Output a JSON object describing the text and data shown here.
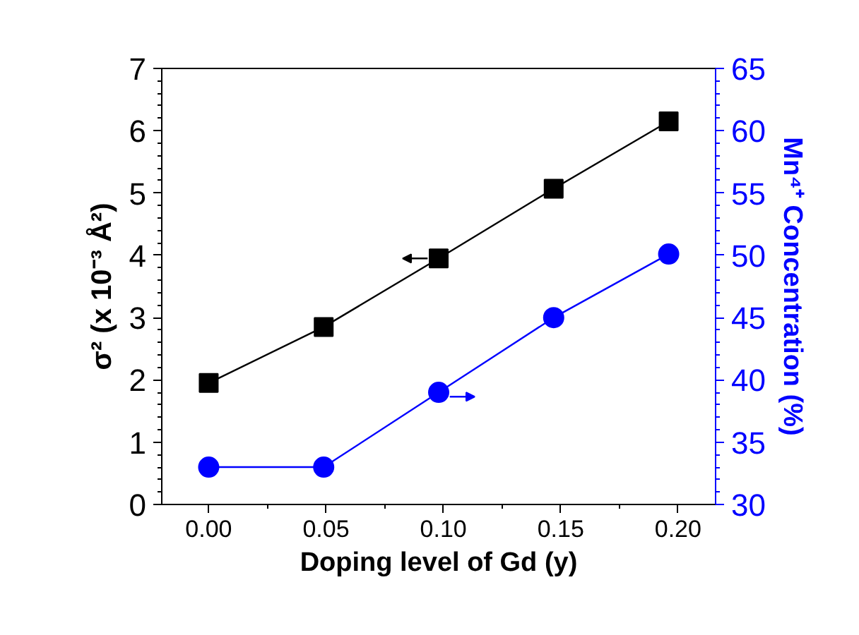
{
  "chart_data": {
    "type": "line",
    "xlabel": "Doping level of Gd (y)",
    "ylabel": "σ² (x 10⁻³ Å²)",
    "y2label": "Mn⁴⁺ Concentration (%)",
    "x": [
      0,
      0.049,
      0.098,
      0.147,
      0.196
    ],
    "series": [
      {
        "color": "#000000",
        "marker": "square",
        "values": [
          1.95,
          2.85,
          3.95,
          5.07,
          6.15
        ]
      },
      {
        "color": "#0000ff",
        "marker": "circle",
        "axis": "y2",
        "values": [
          33.0,
          33.0,
          39.0,
          45.0,
          50.1
        ]
      }
    ],
    "xlim": [
      -0.02,
      0.216
    ],
    "xticks": [
      {
        "value": 0,
        "label": "0.00"
      },
      {
        "value": 0.05,
        "label": "0.05"
      },
      {
        "value": 0.1,
        "label": "0.10"
      },
      {
        "value": 0.15,
        "label": "0.15"
      },
      {
        "value": 0.2,
        "label": "0.20"
      }
    ],
    "ylim": [
      0,
      7
    ],
    "yticks": [
      0,
      1,
      2,
      3,
      4,
      5,
      6,
      7
    ],
    "y2lim": [
      30,
      65
    ],
    "y2ticks": [
      30,
      35,
      40,
      45,
      50,
      55,
      60,
      65
    ],
    "grid": false,
    "line_style": "solid"
  }
}
